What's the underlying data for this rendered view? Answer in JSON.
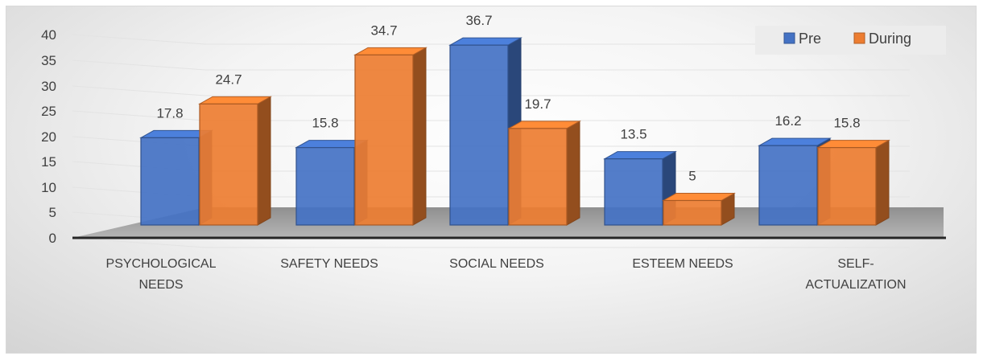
{
  "chart_data": {
    "type": "bar",
    "variant": "3d-clustered-column",
    "title": "",
    "categories": [
      [
        "PSYCHOLOGICAL",
        "NEEDS"
      ],
      [
        "SAFETY NEEDS"
      ],
      [
        "SOCIAL NEEDS"
      ],
      [
        "ESTEEM NEEDS"
      ],
      [
        "SELF-",
        "ACTUALIZATION"
      ]
    ],
    "series": [
      {
        "name": "Pre",
        "values": [
          17.8,
          15.8,
          36.7,
          13.5,
          16.2
        ],
        "color": "#4472C4"
      },
      {
        "name": "During",
        "values": [
          24.7,
          34.7,
          19.7,
          5,
          15.8
        ],
        "color": "#ED7D31"
      }
    ],
    "data_labels": [
      [
        "17.8",
        "15.8",
        "36.7",
        "13.5",
        "16.2"
      ],
      [
        "24.7",
        "34.7",
        "19.7",
        "5",
        "15.8"
      ]
    ],
    "y_ticks": [
      "0",
      "5",
      "10",
      "15",
      "20",
      "25",
      "30",
      "35",
      "40"
    ],
    "ylim": [
      0,
      40
    ],
    "grid": true,
    "legend_position": "top-right",
    "floor_color": "#a6a6a6"
  }
}
